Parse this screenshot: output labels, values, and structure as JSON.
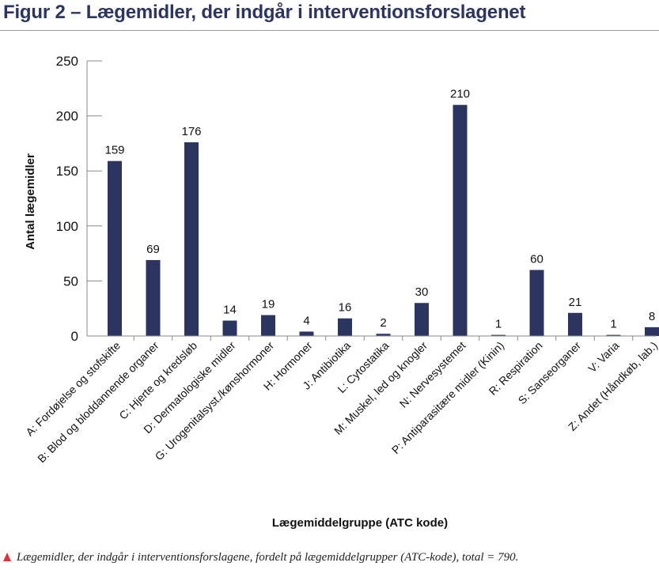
{
  "figure": {
    "title": "Figur 2 – Lægemidler, der indgår i interventionsforslagenet",
    "caption": "Lægemidler, der indgår i interventionsforslagene, fordelt på lægemiddelgrupper (ATC-kode), total = 790.",
    "caption_marker_color": "#e0303a"
  },
  "chart_data": {
    "type": "bar",
    "title": "",
    "xlabel": "Lægemiddelgruppe (ATC kode)",
    "ylabel": "Antal lægemidler",
    "ylim": [
      0,
      250
    ],
    "yticks": [
      0,
      50,
      100,
      150,
      200,
      250
    ],
    "grid": false,
    "bar_color": "#2b3560",
    "categories": [
      "A: Fordøjelse og stofskifte",
      "B: Blod og bloddannende organer",
      "C: Hjerte og kredsløb",
      "D: Dermatologiske midler",
      "G: Urogenitalsyst./kønshormoner",
      "H: Hormoner",
      "J: Antibiotika",
      "L: Cytostatika",
      "M: Muskel, led og knogler",
      "N: Nervesystemet",
      "P: Antiparasitære midler (Kinin)",
      "R: Respiration",
      "S: Sanseorganer",
      "V: Varia",
      "Z: Andet (Håndkøb, lab.)"
    ],
    "values": [
      159,
      69,
      176,
      14,
      19,
      4,
      16,
      2,
      30,
      210,
      1,
      60,
      21,
      1,
      8
    ],
    "data_labels": [
      "159",
      "69",
      "176",
      "14",
      "19",
      "4",
      "16",
      "2",
      "30",
      "210",
      "1",
      "60",
      "21",
      "1",
      "8"
    ]
  }
}
